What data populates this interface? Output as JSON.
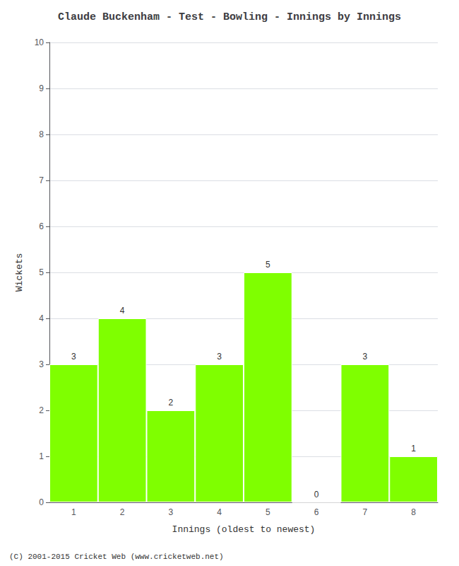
{
  "chart_data": {
    "type": "bar",
    "title": "Claude Buckenham - Test - Bowling - Innings by Innings",
    "xlabel": "Innings (oldest to newest)",
    "ylabel": "Wickets",
    "categories": [
      1,
      2,
      3,
      4,
      5,
      6,
      7,
      8
    ],
    "values": [
      3,
      4,
      2,
      3,
      5,
      0,
      3,
      1
    ],
    "color": "#7FFF00",
    "ylim": [
      0,
      10
    ],
    "yticks": [
      0,
      1,
      2,
      3,
      4,
      5,
      6,
      7,
      8,
      9,
      10
    ],
    "grid": true,
    "data_labels": true,
    "annotations": [
      "(C) 2001-2015 Cricket Web (www.cricketweb.net)"
    ]
  }
}
